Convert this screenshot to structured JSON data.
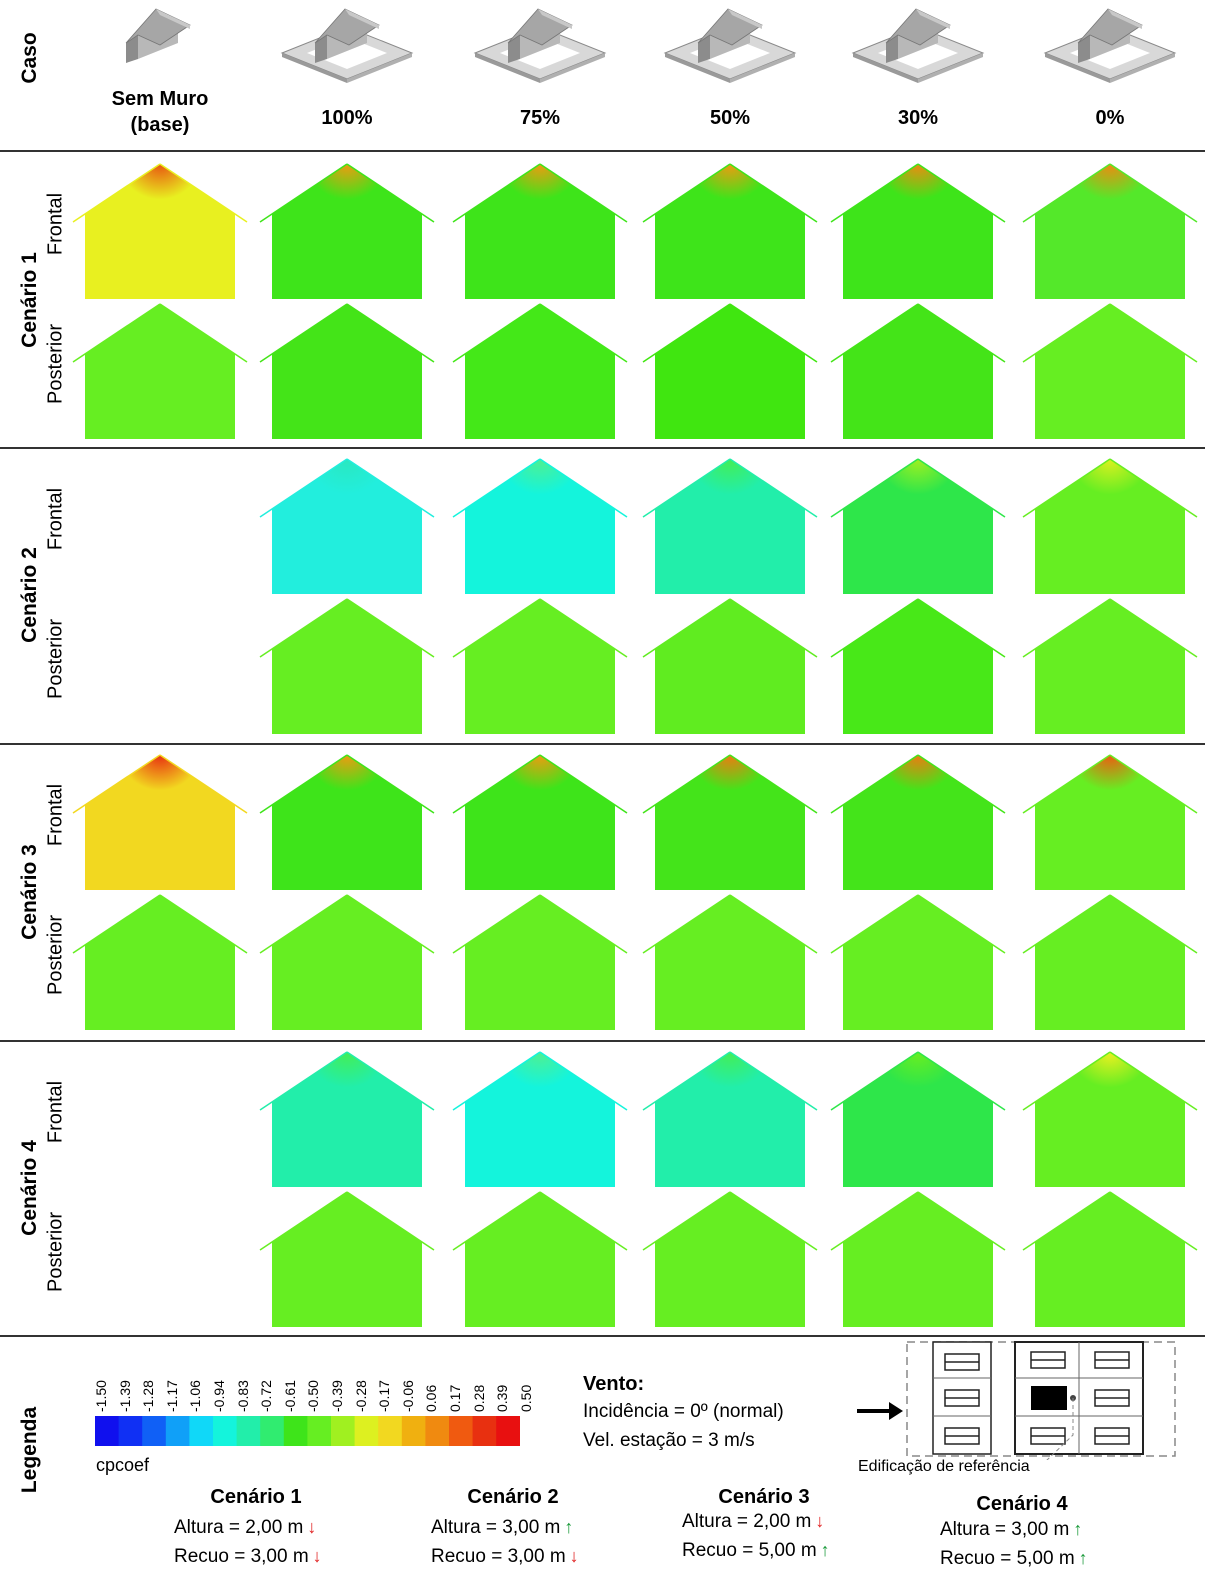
{
  "header": {
    "row_label": "Caso",
    "cases": [
      "Sem Muro\n(base)",
      "100%",
      "75%",
      "50%",
      "30%",
      "0%"
    ]
  },
  "rows": [
    {
      "scenario": "Cenário 1",
      "views": [
        {
          "label": "Frontal",
          "cells": [
            "#e8f020",
            "#3ee41a",
            "#3ee41a",
            "#3ee41a",
            "#3ee41a",
            "#54e82a"
          ],
          "peaks": [
            "#e85510",
            "#f09a10",
            "#f09a10",
            "#f09a10",
            "#f08a10",
            "#f08a10"
          ]
        },
        {
          "label": "Posterior",
          "cells": [
            "#66ee22",
            "#44e418",
            "#44e818",
            "#40e610",
            "#44e418",
            "#66ee22"
          ],
          "peaks": [
            "#66ee22",
            "#44e418",
            "#44e818",
            "#40e610",
            "#44e418",
            "#66ee22"
          ]
        }
      ]
    },
    {
      "scenario": "Cenário 2",
      "views": [
        {
          "label": "Frontal",
          "cells": [
            null,
            "#22eedd",
            "#14f4dc",
            "#22eeaa",
            "#2ee64a",
            "#66ee22"
          ],
          "peaks": [
            null,
            "#2ae8c0",
            "#50f090",
            "#44ee55",
            "#a0f020",
            "#ddf020"
          ]
        },
        {
          "label": "Posterior",
          "cells": [
            null,
            "#66ee22",
            "#66ee22",
            "#60ec20",
            "#48e818",
            "#66ee22"
          ],
          "peaks": [
            null,
            "#66ee22",
            "#66ee22",
            "#60ec20",
            "#48e818",
            "#66ee22"
          ]
        }
      ]
    },
    {
      "scenario": "Cenário 3",
      "views": [
        {
          "label": "Frontal",
          "cells": [
            "#f2d820",
            "#3ee41a",
            "#3ee41a",
            "#44e41a",
            "#44e41a",
            "#66ee22"
          ],
          "peaks": [
            "#e83010",
            "#f09a10",
            "#f09a10",
            "#f07a10",
            "#f07a10",
            "#f05a10"
          ]
        },
        {
          "label": "Posterior",
          "cells": [
            "#66ee22",
            "#66ee22",
            "#66ee22",
            "#66ee22",
            "#66ee22",
            "#66ee22"
          ],
          "peaks": [
            "#66ee22",
            "#66ee22",
            "#66ee22",
            "#66ee22",
            "#66ee22",
            "#66ee22"
          ]
        }
      ]
    },
    {
      "scenario": "Cenário 4",
      "views": [
        {
          "label": "Frontal",
          "cells": [
            null,
            "#22eeaa",
            "#14f4dc",
            "#22eeaa",
            "#2ee64a",
            "#66ee22"
          ],
          "peaks": [
            null,
            "#44ee55",
            "#50f090",
            "#44ee55",
            "#6aee20",
            "#eef020"
          ]
        },
        {
          "label": "Posterior",
          "cells": [
            null,
            "#66ee22",
            "#66ee22",
            "#66ee22",
            "#66ee22",
            "#66ee22"
          ],
          "peaks": [
            null,
            "#66ee22",
            "#66ee22",
            "#66ee22",
            "#66ee22",
            "#66ee22"
          ]
        }
      ]
    }
  ],
  "legend": {
    "title": "Legenda",
    "colorbar_ticks": [
      "-1.50",
      "-1.39",
      "-1.28",
      "-1.17",
      "-1.06",
      "-0.94",
      "-0.83",
      "-0.72",
      "-0.61",
      "-0.50",
      "-0.39",
      "-0.28",
      "-0.17",
      "-0.06",
      "0.06",
      "0.17",
      "0.28",
      "0.39",
      "0.50"
    ],
    "colorbar_colors": [
      "#1010ee",
      "#1030f4",
      "#1060f6",
      "#10a0f8",
      "#10d8f8",
      "#14f4dc",
      "#22eeaa",
      "#30ec70",
      "#3ee41a",
      "#66ee22",
      "#a0f020",
      "#ddf020",
      "#f2d820",
      "#f0b010",
      "#f08a10",
      "#f05a10",
      "#e83010",
      "#e81010"
    ],
    "colorbar_label": "cpcoef",
    "wind_title": "Vento:",
    "wind_incidence": "Incidência = 0º (normal)",
    "wind_speed": "Vel. estação = 3 m/s",
    "reference_label": "Edificação de referência"
  },
  "scenarios_summary": [
    {
      "title": "Cenário 1",
      "altura": "Altura = 2,00 m",
      "altura_trend": "down",
      "recuo": "Recuo = 3,00 m",
      "recuo_trend": "down"
    },
    {
      "title": "Cenário 2",
      "altura": "Altura = 3,00 m",
      "altura_trend": "up",
      "recuo": "Recuo = 3,00 m",
      "recuo_trend": "down"
    },
    {
      "title": "Cenário 3",
      "altura": "Altura = 2,00 m",
      "altura_trend": "down",
      "recuo": "Recuo = 5,00 m",
      "recuo_trend": "up"
    },
    {
      "title": "Cenário 4",
      "altura": "Altura = 3,00 m",
      "altura_trend": "up",
      "recuo": "Recuo = 5,00 m",
      "recuo_trend": "up"
    }
  ]
}
